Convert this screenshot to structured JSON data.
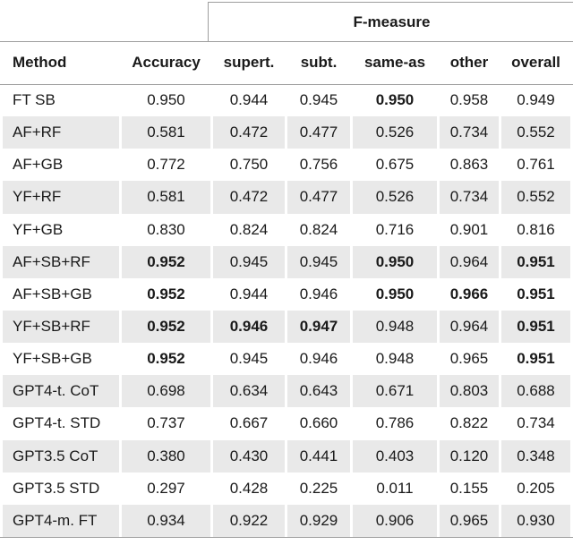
{
  "table": {
    "span_header": "F-measure",
    "columns": [
      "Method",
      "Accuracy",
      "supert.",
      "subt.",
      "same-as",
      "other",
      "overall"
    ],
    "rows": [
      {
        "method": "FT SB",
        "values": [
          "0.950",
          "0.944",
          "0.945",
          "0.950",
          "0.958",
          "0.949"
        ],
        "bold": [
          false,
          false,
          false,
          true,
          false,
          false
        ]
      },
      {
        "method": "AF+RF",
        "values": [
          "0.581",
          "0.472",
          "0.477",
          "0.526",
          "0.734",
          "0.552"
        ],
        "bold": [
          false,
          false,
          false,
          false,
          false,
          false
        ]
      },
      {
        "method": "AF+GB",
        "values": [
          "0.772",
          "0.750",
          "0.756",
          "0.675",
          "0.863",
          "0.761"
        ],
        "bold": [
          false,
          false,
          false,
          false,
          false,
          false
        ]
      },
      {
        "method": "YF+RF",
        "values": [
          "0.581",
          "0.472",
          "0.477",
          "0.526",
          "0.734",
          "0.552"
        ],
        "bold": [
          false,
          false,
          false,
          false,
          false,
          false
        ]
      },
      {
        "method": "YF+GB",
        "values": [
          "0.830",
          "0.824",
          "0.824",
          "0.716",
          "0.901",
          "0.816"
        ],
        "bold": [
          false,
          false,
          false,
          false,
          false,
          false
        ]
      },
      {
        "method": "AF+SB+RF",
        "values": [
          "0.952",
          "0.945",
          "0.945",
          "0.950",
          "0.964",
          "0.951"
        ],
        "bold": [
          true,
          false,
          false,
          true,
          false,
          true
        ]
      },
      {
        "method": "AF+SB+GB",
        "values": [
          "0.952",
          "0.944",
          "0.946",
          "0.950",
          "0.966",
          "0.951"
        ],
        "bold": [
          true,
          false,
          false,
          true,
          true,
          true
        ]
      },
      {
        "method": "YF+SB+RF",
        "values": [
          "0.952",
          "0.946",
          "0.947",
          "0.948",
          "0.964",
          "0.951"
        ],
        "bold": [
          true,
          true,
          true,
          false,
          false,
          true
        ]
      },
      {
        "method": "YF+SB+GB",
        "values": [
          "0.952",
          "0.945",
          "0.946",
          "0.948",
          "0.965",
          "0.951"
        ],
        "bold": [
          true,
          false,
          false,
          false,
          false,
          true
        ]
      },
      {
        "method": "GPT4-t. CoT",
        "values": [
          "0.698",
          "0.634",
          "0.643",
          "0.671",
          "0.803",
          "0.688"
        ],
        "bold": [
          false,
          false,
          false,
          false,
          false,
          false
        ]
      },
      {
        "method": "GPT4-t. STD",
        "values": [
          "0.737",
          "0.667",
          "0.660",
          "0.786",
          "0.822",
          "0.734"
        ],
        "bold": [
          false,
          false,
          false,
          false,
          false,
          false
        ]
      },
      {
        "method": "GPT3.5 CoT",
        "values": [
          "0.380",
          "0.430",
          "0.441",
          "0.403",
          "0.120",
          "0.348"
        ],
        "bold": [
          false,
          false,
          false,
          false,
          false,
          false
        ]
      },
      {
        "method": "GPT3.5 STD",
        "values": [
          "0.297",
          "0.428",
          "0.225",
          "0.011",
          "0.155",
          "0.205"
        ],
        "bold": [
          false,
          false,
          false,
          false,
          false,
          false
        ]
      },
      {
        "method": "GPT4-m. FT",
        "values": [
          "0.934",
          "0.922",
          "0.929",
          "0.906",
          "0.965",
          "0.930"
        ],
        "bold": [
          false,
          false,
          false,
          false,
          false,
          false
        ]
      }
    ]
  },
  "colors": {
    "stripe": "#e9e9e9",
    "rule": "#9e9e9e",
    "text": "#1a1a1a",
    "background": "#ffffff"
  }
}
